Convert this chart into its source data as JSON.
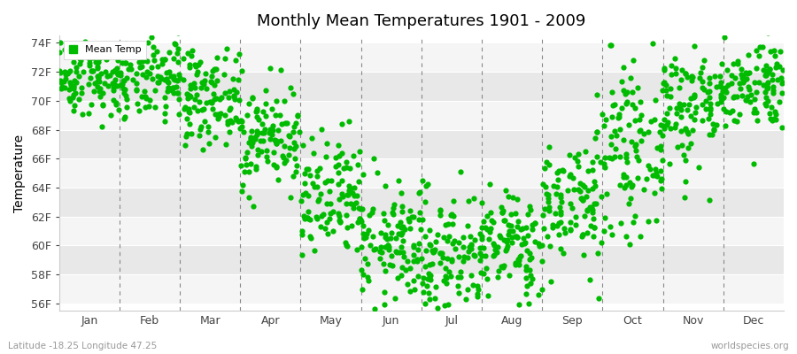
{
  "title": "Monthly Mean Temperatures 1901 - 2009",
  "ylabel": "Temperature",
  "xlabel_bottom": "Latitude -18.25 Longitude 47.25",
  "watermark": "worldspecies.org",
  "legend_label": "Mean Temp",
  "dot_color": "#00bb00",
  "background_color": "#ffffff",
  "plot_bg_light": "#f5f5f5",
  "plot_bg_dark": "#e8e8e8",
  "yticks": [
    56,
    58,
    60,
    62,
    64,
    66,
    68,
    70,
    72,
    74
  ],
  "ylim": [
    55.5,
    74.5
  ],
  "months": [
    "Jan",
    "Feb",
    "Mar",
    "Apr",
    "May",
    "Jun",
    "Jul",
    "Aug",
    "Sep",
    "Oct",
    "Nov",
    "Dec"
  ],
  "month_means_F": [
    71.6,
    71.4,
    70.3,
    67.5,
    63.0,
    60.1,
    59.4,
    60.1,
    63.1,
    66.6,
    69.8,
    71.2
  ],
  "month_std_F": [
    1.3,
    1.4,
    1.6,
    1.8,
    2.2,
    2.0,
    2.2,
    1.8,
    2.3,
    2.7,
    2.2,
    1.6
  ],
  "n_years": 109,
  "marker_size": 4.5,
  "dpi": 100,
  "figsize": [
    9.0,
    4.0
  ]
}
